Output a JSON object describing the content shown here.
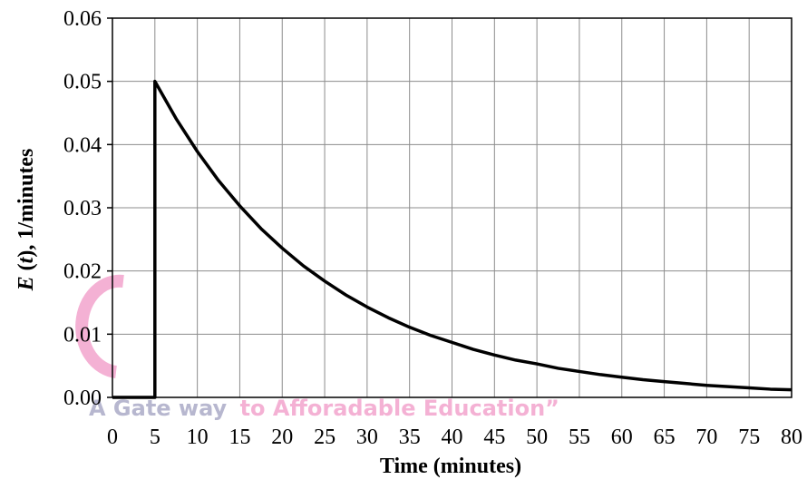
{
  "chart_data": {
    "type": "line",
    "title": "",
    "xlabel": "Time (minutes)",
    "ylabel_parts": [
      "E",
      " (",
      "t",
      "), 1/minutes"
    ],
    "xlim": [
      0,
      80
    ],
    "ylim": [
      0,
      0.06
    ],
    "x_ticks": [
      "0",
      "5",
      "10",
      "15",
      "20",
      "25",
      "30",
      "35",
      "40",
      "45",
      "50",
      "55",
      "60",
      "65",
      "70",
      "75",
      "80"
    ],
    "y_ticks": [
      "0.00",
      "0.01",
      "0.02",
      "0.03",
      "0.04",
      "0.05",
      "0.06"
    ],
    "grid": true,
    "legend": "none",
    "series": [
      {
        "x": [
          0,
          5,
          5,
          7.5,
          10,
          12.5,
          15,
          17.5,
          20,
          22.5,
          25,
          27.5,
          30,
          32.5,
          35,
          37.5,
          40,
          42.5,
          45,
          47.5,
          50,
          52.5,
          55,
          57.5,
          60,
          62.5,
          65,
          67.5,
          70,
          72.5,
          75,
          77.5,
          80
        ],
        "y": [
          0,
          0,
          0.05,
          0.0441,
          0.0389,
          0.0343,
          0.0303,
          0.0267,
          0.0236,
          0.0208,
          0.0184,
          0.0162,
          0.0143,
          0.0126,
          0.0111,
          0.0098,
          0.0087,
          0.0076,
          0.0067,
          0.0059,
          0.0053,
          0.0046,
          0.0041,
          0.0036,
          0.0032,
          0.0028,
          0.0025,
          0.0022,
          0.0019,
          0.0017,
          0.0015,
          0.0013,
          0.0012
        ],
        "color": "#000000"
      }
    ]
  },
  "watermark": {
    "part1": "A Gate way",
    "part2": "to Afforadable Education”",
    "color1": "#b7b7cf",
    "color2": "#f4b1d4"
  }
}
